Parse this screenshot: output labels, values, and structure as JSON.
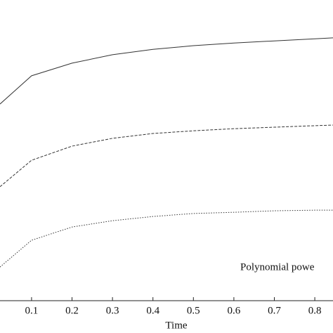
{
  "chart_data": {
    "type": "line",
    "x_label": "Time",
    "annotation": "Polynomial powe",
    "x": [
      0.022,
      0.1,
      0.2,
      0.3,
      0.4,
      0.5,
      0.6,
      0.7,
      0.8,
      0.845
    ],
    "series": [
      {
        "color": "#333333",
        "dash": "solid",
        "values": [
          0.654,
          0.748,
          0.79,
          0.818,
          0.836,
          0.848,
          0.857,
          0.864,
          0.871,
          0.874
        ]
      },
      {
        "color": "#333333",
        "dash": "dashed",
        "values": [
          0.379,
          0.467,
          0.514,
          0.54,
          0.556,
          0.565,
          0.572,
          0.577,
          0.582,
          0.584
        ]
      },
      {
        "color": "#333333",
        "dash": "dotted",
        "values": [
          0.112,
          0.201,
          0.245,
          0.266,
          0.28,
          0.29,
          0.294,
          0.299,
          0.301,
          0.301
        ]
      }
    ],
    "xlim": [
      0.022,
      0.845
    ],
    "ylim": [
      0,
      1
    ],
    "xticks": [
      0.1,
      0.2,
      0.3,
      0.4,
      0.5,
      0.6,
      0.7,
      0.8
    ]
  }
}
